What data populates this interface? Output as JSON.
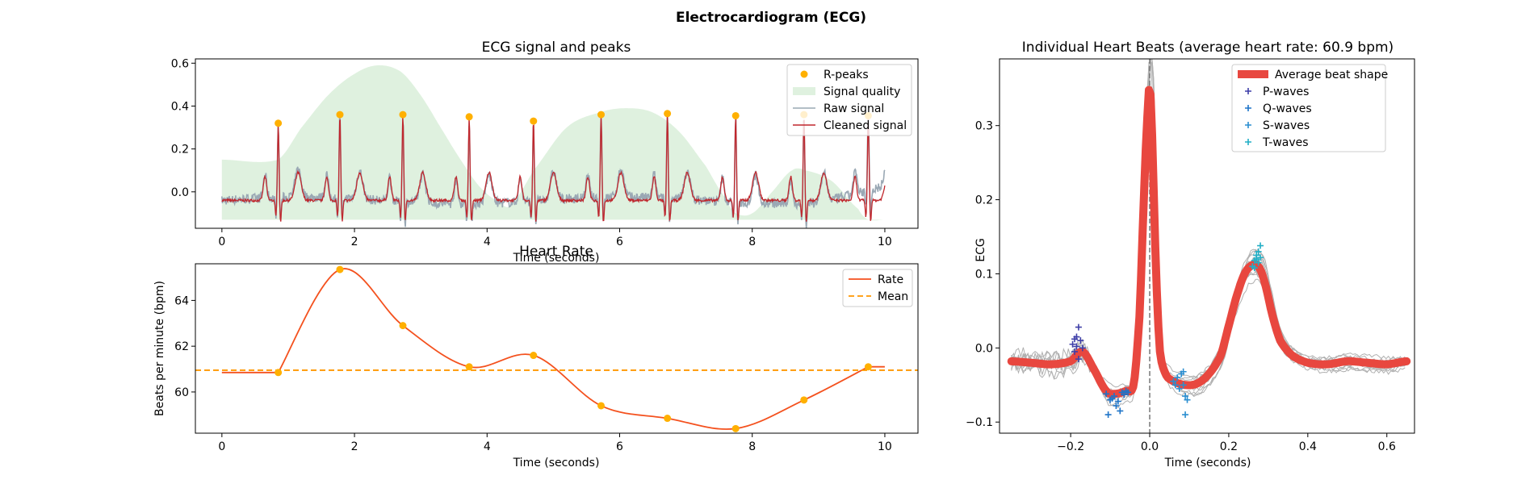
{
  "figure": {
    "title": "Electrocardiogram (ECG)"
  },
  "colors": {
    "r_peaks": "#FFB000",
    "signal_quality": "#DFF1DF",
    "raw_signal": "#9AA8B4",
    "cleaned_signal": "#C0272D",
    "rate": "#F4511E",
    "mean": "#FF9800",
    "average_beat": "#E8473F",
    "p_waves": "#3F3FA8",
    "q_waves": "#1E74C8",
    "s_waves": "#2A8ED0",
    "t_waves": "#22AFC6",
    "individual_beats": "#B0B0B0",
    "zero_line": "#777777"
  },
  "chart_data": [
    {
      "type": "line",
      "title": "ECG signal and peaks",
      "xlabel": "Time (seconds)",
      "ylabel": "",
      "xlim": [
        -0.4,
        10.5
      ],
      "ylim": [
        -0.17,
        0.62
      ],
      "xticks": [
        0,
        2,
        4,
        6,
        8,
        10
      ],
      "yticks": [
        0.0,
        0.2,
        0.4,
        0.6
      ],
      "xtick_labels": [
        "0",
        "2",
        "4",
        "6",
        "8",
        "10"
      ],
      "ytick_labels": [
        "0.0",
        "0.2",
        "0.4",
        "0.6"
      ],
      "legend_position": "top-right",
      "legend": [
        "R-peaks",
        "Signal quality",
        "Raw signal",
        "Cleaned signal"
      ],
      "r_peaks": {
        "x": [
          0.85,
          1.78,
          2.73,
          3.73,
          4.7,
          5.72,
          6.72,
          7.75,
          8.78,
          9.75
        ],
        "y": [
          0.32,
          0.36,
          0.36,
          0.35,
          0.33,
          0.36,
          0.365,
          0.355,
          0.36,
          0.355
        ]
      },
      "signal_quality": {
        "baseline": -0.13,
        "x": [
          0,
          0.85,
          1.2,
          1.6,
          2.0,
          2.35,
          2.7,
          3.0,
          3.3,
          3.6,
          3.9,
          4.2,
          4.35,
          4.7,
          5.2,
          5.7,
          6.1,
          6.5,
          6.9,
          7.3,
          7.6,
          7.75,
          8.0,
          8.3,
          8.6,
          8.8,
          9.2,
          9.6,
          9.75,
          10.0
        ],
        "y": [
          0.15,
          0.15,
          0.3,
          0.45,
          0.55,
          0.59,
          0.56,
          0.45,
          0.3,
          0.15,
          0.02,
          -0.05,
          -0.06,
          0.1,
          0.3,
          0.37,
          0.39,
          0.37,
          0.28,
          0.12,
          -0.03,
          -0.1,
          -0.1,
          0.0,
          0.1,
          0.1,
          0.05,
          -0.08,
          -0.13,
          -0.13
        ]
      }
    },
    {
      "type": "line",
      "title": "Heart Rate",
      "xlabel": "Time (seconds)",
      "ylabel": "Beats per minute (bpm)",
      "xlim": [
        -0.4,
        10.5
      ],
      "ylim": [
        58.2,
        65.6
      ],
      "xticks": [
        0,
        2,
        4,
        6,
        8,
        10
      ],
      "yticks": [
        60,
        62,
        64
      ],
      "xtick_labels": [
        "0",
        "2",
        "4",
        "6",
        "8",
        "10"
      ],
      "ytick_labels": [
        "60",
        "62",
        "64"
      ],
      "legend_position": "top-right",
      "legend": [
        "Rate",
        "Mean"
      ],
      "rate_points": {
        "x": [
          0.85,
          1.78,
          2.73,
          3.73,
          4.7,
          5.72,
          6.72,
          7.75,
          8.78,
          9.75
        ],
        "y": [
          60.85,
          65.35,
          62.9,
          61.1,
          61.6,
          59.4,
          58.85,
          58.4,
          59.65,
          61.1
        ]
      },
      "rate_start": 60.85,
      "rate_end": 61.1,
      "x_start": 0,
      "x_end": 10,
      "mean": 60.95
    },
    {
      "type": "line",
      "title": "Individual Heart Beats (average heart rate: 60.9 bpm)",
      "xlabel": "Time (seconds)",
      "ylabel": "ECG",
      "xlim": [
        -0.38,
        0.67
      ],
      "ylim": [
        -0.115,
        0.39
      ],
      "xticks": [
        -0.2,
        0.0,
        0.2,
        0.4,
        0.6
      ],
      "yticks": [
        -0.1,
        0.0,
        0.1,
        0.2,
        0.3
      ],
      "xtick_labels": [
        "−0.2",
        "0.0",
        "0.2",
        "0.4",
        "0.6"
      ],
      "ytick_labels": [
        "−0.1",
        "0.0",
        "0.1",
        "0.2",
        "0.3"
      ],
      "legend_position": "top-right",
      "legend": [
        "Average beat shape",
        "P-waves",
        "Q-waves",
        "S-waves",
        "T-waves"
      ],
      "average_beat": {
        "x": [
          -0.35,
          -0.3,
          -0.25,
          -0.2,
          -0.17,
          -0.14,
          -0.11,
          -0.09,
          -0.06,
          -0.04,
          -0.025,
          -0.015,
          -0.005,
          0.0,
          0.005,
          0.015,
          0.025,
          0.04,
          0.06,
          0.09,
          0.12,
          0.15,
          0.18,
          0.2,
          0.22,
          0.24,
          0.26,
          0.275,
          0.29,
          0.31,
          0.33,
          0.36,
          0.4,
          0.45,
          0.5,
          0.55,
          0.6,
          0.65
        ],
        "y": [
          -0.018,
          -0.02,
          -0.022,
          -0.018,
          -0.005,
          -0.03,
          -0.058,
          -0.062,
          -0.058,
          -0.048,
          0.05,
          0.2,
          0.32,
          0.35,
          0.3,
          0.12,
          0.0,
          -0.035,
          -0.045,
          -0.05,
          -0.048,
          -0.035,
          -0.01,
          0.03,
          0.07,
          0.1,
          0.112,
          0.11,
          0.09,
          0.045,
          0.01,
          -0.01,
          -0.02,
          -0.022,
          -0.018,
          -0.02,
          -0.022,
          -0.018
        ]
      },
      "p_waves": {
        "x": [
          -0.195,
          -0.19,
          -0.185,
          -0.18,
          -0.175,
          -0.19,
          -0.185,
          -0.17,
          -0.18
        ],
        "y": [
          0.005,
          0.012,
          0.002,
          0.028,
          0.01,
          -0.005,
          0.015,
          0.0,
          -0.015
        ]
      },
      "q_waves": {
        "x": [
          -0.11,
          -0.1,
          -0.09,
          -0.08,
          -0.07,
          -0.06,
          -0.105,
          -0.095,
          -0.085,
          -0.075,
          -0.065,
          -0.055
        ],
        "y": [
          -0.062,
          -0.07,
          -0.065,
          -0.072,
          -0.06,
          -0.058,
          -0.09,
          -0.068,
          -0.078,
          -0.085,
          -0.063,
          -0.06
        ]
      },
      "s_waves": {
        "x": [
          0.06,
          0.065,
          0.07,
          0.075,
          0.08,
          0.085,
          0.09,
          0.095,
          0.09,
          0.085
        ],
        "y": [
          -0.045,
          -0.05,
          -0.04,
          -0.055,
          -0.035,
          -0.05,
          -0.065,
          -0.07,
          -0.09,
          -0.032
        ]
      },
      "t_waves": {
        "x": [
          0.26,
          0.265,
          0.27,
          0.275,
          0.28,
          0.27,
          0.265,
          0.275,
          0.28
        ],
        "y": [
          0.11,
          0.118,
          0.125,
          0.13,
          0.138,
          0.12,
          0.108,
          0.115,
          0.122
        ]
      }
    }
  ]
}
